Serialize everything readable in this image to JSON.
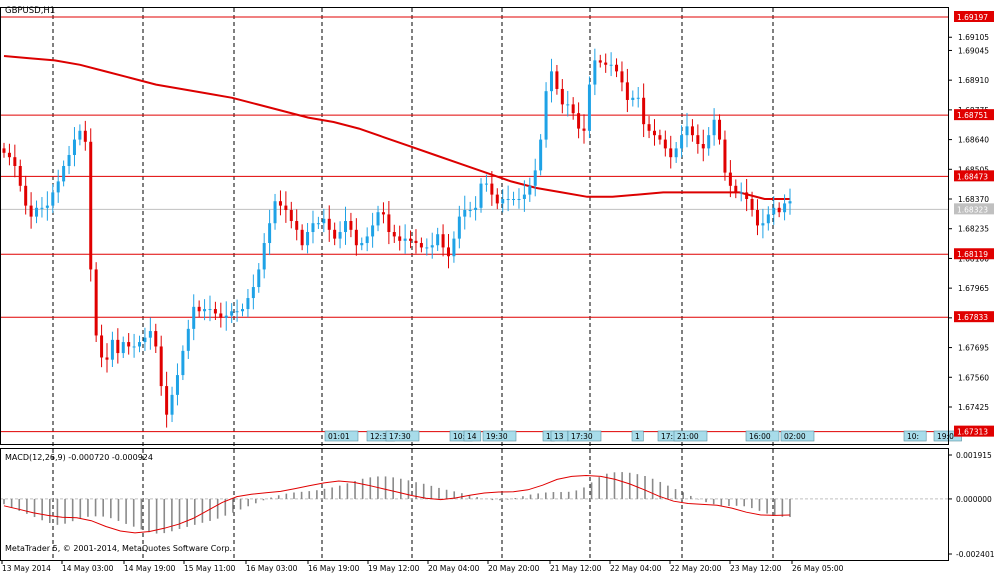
{
  "symbol_title": "GBPUSD,H1",
  "macd_label": "MACD(12,26,9) -0.000720 -0.000924",
  "copyright": "MetaTrader 5, © 2001-2014, MetaQuotes Software Corp.",
  "colors": {
    "background": "#ffffff",
    "bull_candle": "#1ea2e6",
    "bear_candle": "#e00000",
    "moving_average": "#dc0000",
    "level_line": "#e00000",
    "level_tag_bg": "#e00000",
    "current_price_line": "#c0c0c0",
    "current_price_tag_bg": "#c0c0c0",
    "macd_histogram": "#8a8a8a",
    "macd_signal": "#e00000",
    "event_tag_bg": "#a8dcea",
    "grid": "#000000"
  },
  "chart_data": [
    {
      "type": "candlestick",
      "title": "GBPUSD,H1",
      "ylim": [
        1.67275,
        1.69197
      ],
      "grid": "vertical dashed",
      "price_axis_ticks": [
        "1.69105",
        "1.69045",
        "1.68910",
        "1.68775",
        "1.68640",
        "1.68505",
        "1.68370",
        "1.68235",
        "1.68100",
        "1.67965",
        "1.67830",
        "1.67695",
        "1.67560",
        "1.67425"
      ],
      "time_axis_labels": [
        "13 May 2014",
        "14 May 03:00",
        "14 May 19:00",
        "15 May 11:00",
        "16 May 03:00",
        "16 May 19:00",
        "19 May 12:00",
        "20 May 04:00",
        "20 May 20:00",
        "21 May 12:00",
        "22 May 04:00",
        "22 May 20:00",
        "23 May 12:00",
        "26 May 05:00"
      ],
      "horizontal_levels": [
        "1.69197",
        "1.68751",
        "1.68473",
        "1.68119",
        "1.67833",
        "1.67313"
      ],
      "current_price": "1.68323",
      "event_markers": [
        "01:01",
        "12:3",
        "17:30",
        "10:",
        "14",
        "19:30",
        "1",
        "13",
        "17:30",
        "1",
        "17:",
        "21:00",
        "16:00",
        "02:00",
        "10:",
        "19:0"
      ],
      "series": [
        {
          "kind": "ohlc",
          "x_range": "13 May 2014 – 26 May 05:00",
          "close": [
            1.6858,
            1.6856,
            1.6852,
            1.6843,
            1.6834,
            1.6829,
            1.6833,
            1.6833,
            1.6834,
            1.684,
            1.6845,
            1.6852,
            1.6857,
            1.6864,
            1.6868,
            1.6863,
            1.6805,
            1.6775,
            1.6765,
            1.6764,
            1.6773,
            1.6767,
            1.6772,
            1.677,
            1.677,
            1.6772,
            1.6774,
            1.6777,
            1.677,
            1.6752,
            1.6739,
            1.6748,
            1.6757,
            1.6768,
            1.6778,
            1.6788,
            1.6786,
            1.6787,
            1.6787,
            1.6785,
            1.6783,
            1.6784,
            1.6786,
            1.6786,
            1.6787,
            1.6792,
            1.6797,
            1.6805,
            1.6817,
            1.6826,
            1.6836,
            1.6834,
            1.6832,
            1.6827,
            1.6823,
            1.6816,
            1.6822,
            1.6826,
            1.6826,
            1.6828,
            1.6823,
            1.6819,
            1.6822,
            1.6827,
            1.6823,
            1.6816,
            1.6817,
            1.682,
            1.6825,
            1.6831,
            1.683,
            1.6822,
            1.682,
            1.6818,
            1.6819,
            1.6818,
            1.6817,
            1.6815,
            1.6815,
            1.6816,
            1.6821,
            1.6815,
            1.6811,
            1.6819,
            1.6829,
            1.6832,
            1.6832,
            1.6833,
            1.6844,
            1.6844,
            1.6839,
            1.6835,
            1.6837,
            1.6837,
            1.6837,
            1.6837,
            1.6839,
            1.6843,
            1.685,
            1.6864,
            1.6886,
            1.6895,
            1.6887,
            1.688,
            1.688,
            1.6876,
            1.6869,
            1.6868,
            1.6889,
            1.69,
            1.6899,
            1.6898,
            1.6898,
            1.6895,
            1.689,
            1.6882,
            1.6883,
            1.6883,
            1.6871,
            1.6868,
            1.6866,
            1.6864,
            1.686,
            1.6856,
            1.686,
            1.6866,
            1.687,
            1.6866,
            1.6862,
            1.686,
            1.6866,
            1.6873,
            1.6864,
            1.6849,
            1.6843,
            1.684,
            1.684,
            1.6837,
            1.6832,
            1.6825,
            1.6826,
            1.683,
            1.6833,
            1.6831,
            1.6835,
            1.6836
          ]
        },
        {
          "name": "",
          "kind": "moving-average",
          "values": [
            1.6902,
            1.6901,
            1.69,
            1.6898,
            1.6895,
            1.6892,
            1.6889,
            1.6887,
            1.6885,
            1.6883,
            1.688,
            1.6877,
            1.6874,
            1.6872,
            1.6869,
            1.6865,
            1.6861,
            1.6857,
            1.6853,
            1.6849,
            1.6845,
            1.6842,
            1.684,
            1.6838,
            1.6838,
            1.6839,
            1.684,
            1.684,
            1.684,
            1.684,
            1.6837,
            1.6837
          ]
        }
      ]
    },
    {
      "type": "bar",
      "title": "MACD(12,26,9) -0.000720 -0.000924",
      "ylim": [
        -0.002401,
        0.001915
      ],
      "axis_ticks": [
        "0.001915",
        "0.000000",
        "-0.002401"
      ],
      "series": [
        {
          "name": "",
          "kind": "histogram",
          "values": [
            -0.00023,
            -0.00038,
            -0.00052,
            -0.00065,
            -0.00079,
            -0.00093,
            -0.00105,
            -0.00113,
            -0.00108,
            -0.00097,
            -0.00085,
            -0.00078,
            -0.00076,
            -0.00077,
            -0.00084,
            -0.00096,
            -0.00109,
            -0.00121,
            -0.00133,
            -0.00145,
            -0.00151,
            -0.00149,
            -0.00141,
            -0.00131,
            -0.00122,
            -0.00113,
            -0.00104,
            -0.00096,
            -0.00086,
            -0.00073,
            -0.0006,
            -0.00046,
            -0.00032,
            -0.00019,
            -6e-05,
            6e-05,
            0.00016,
            0.00023,
            0.00028,
            0.00031,
            0.00034,
            0.00038,
            0.00044,
            0.0005,
            0.00058,
            0.00068,
            0.00078,
            0.00088,
            0.00094,
            0.00098,
            0.00098,
            0.00094,
            0.00088,
            0.00081,
            0.00073,
            0.00066,
            0.00057,
            0.00048,
            0.0004,
            0.00033,
            0.00025,
            0.00017,
            8e-05,
            0.0,
            -5e-05,
            -6e-05,
            -3e-05,
            4e-05,
            0.00012,
            0.00019,
            0.00024,
            0.00028,
            0.0003,
            0.0003,
            0.00031,
            0.00037,
            0.0005,
            0.00072,
            0.00095,
            0.0011,
            0.00116,
            0.00117,
            0.00114,
            0.00108,
            0.001,
            0.00088,
            0.00074,
            0.00058,
            0.00043,
            0.00029,
            0.00013,
            -2e-05,
            -0.00014,
            -0.00023,
            -0.00029,
            -0.00031,
            -0.0003,
            -0.00032,
            -0.0004,
            -0.00052,
            -0.00064,
            -0.00073,
            -0.00078,
            -0.00079
          ]
        },
        {
          "name": "",
          "kind": "signal-line",
          "values": [
            -0.0003,
            -0.00045,
            -0.0006,
            -0.00072,
            -0.0008,
            -0.00082,
            -0.00095,
            -0.0012,
            -0.0014,
            -0.00148,
            -0.00142,
            -0.00128,
            -0.0011,
            -0.00085,
            -0.0005,
            -0.00015,
            0.0001,
            0.0002,
            0.00027,
            0.00033,
            0.00045,
            0.00058,
            0.0007,
            0.00078,
            0.00073,
            0.0006,
            0.00045,
            0.0003,
            0.00015,
            3e-05,
            -3e-05,
            4e-05,
            0.00016,
            0.00026,
            0.0003,
            0.00031,
            0.0004,
            0.0006,
            0.00085,
            0.00098,
            0.00102,
            0.00098,
            0.00085,
            0.00065,
            0.0004,
            0.00012,
            -0.0001,
            -0.0002,
            -0.00024,
            -0.00028,
            -0.0004,
            -0.00058,
            -0.0007,
            -0.00072,
            -0.0007
          ]
        }
      ]
    }
  ]
}
